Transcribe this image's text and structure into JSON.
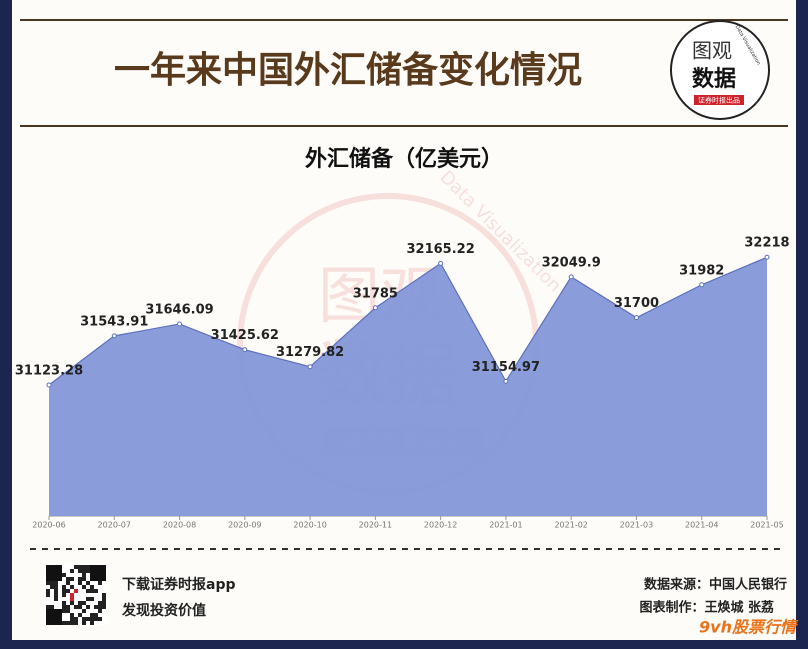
{
  "header": {
    "title": "一年来中国外汇储备变化情况"
  },
  "logo": {
    "top": "图观",
    "bottom": "数据",
    "tag": "证券时报出品",
    "arc": "Data Visualization"
  },
  "chart_data": {
    "type": "area",
    "title": "外汇储备（亿美元）",
    "categories": [
      "2020-06",
      "2020-07",
      "2020-08",
      "2020-09",
      "2020-10",
      "2020-11",
      "2020-12",
      "2021-01",
      "2021-02",
      "2021-03",
      "2021-04",
      "2021-05"
    ],
    "values": [
      31123.28,
      31543.91,
      31646.09,
      31425.62,
      31279.82,
      31785,
      32165.22,
      31154.97,
      32049.9,
      31700,
      31982,
      32218
    ],
    "color": "#8497d8",
    "line_color": "#5d70bf",
    "ylim": [
      30000,
      33000
    ]
  },
  "footer": {
    "app": "下载证券时报app",
    "slogan": "发现投资价值",
    "source": "数据来源：中国人民银行",
    "author": "图表制作：王焕城 张荔",
    "corner": "9vh股票行情"
  }
}
